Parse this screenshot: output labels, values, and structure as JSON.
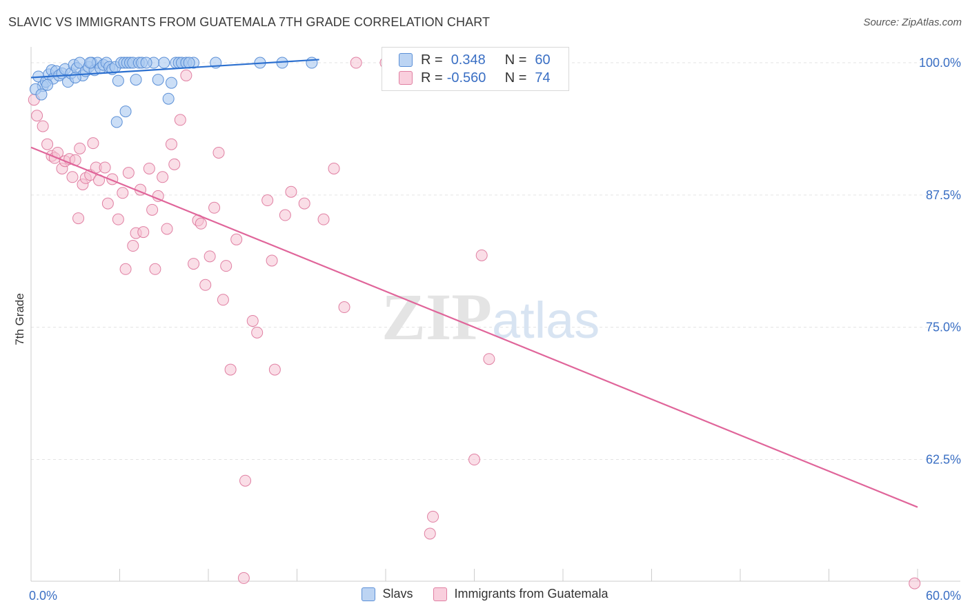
{
  "title": "SLAVIC VS IMMIGRANTS FROM GUATEMALA 7TH GRADE CORRELATION CHART",
  "source": "Source: ZipAtlas.com",
  "watermark": {
    "zip": "ZIP",
    "atlas": "atlas"
  },
  "legend": {
    "rows": [
      {
        "r_label": "R =",
        "r_value": "0.348",
        "n_label": "N =",
        "n_value": "60"
      },
      {
        "r_label": "R =",
        "r_value": "-0.560",
        "n_label": "N =",
        "n_value": "74"
      }
    ]
  },
  "bottom_legend": {
    "slavs": "Slavs",
    "guatemala": "Immigrants from Guatemala"
  },
  "colors": {
    "slavs_fill": "#a9c8f0",
    "slavs_stroke": "#5b8fd6",
    "slavs_line": "#2b6fcf",
    "guat_fill": "#f6c2d4",
    "guat_stroke": "#e07fa2",
    "guat_line": "#e0659a",
    "axis_label": "#3a6fc4",
    "grid": "#e3e3e3"
  },
  "chart_data": {
    "type": "scatter",
    "title": "SLAVIC VS IMMIGRANTS FROM GUATEMALA 7TH GRADE CORRELATION CHART",
    "xlabel": "",
    "ylabel": "7th Grade",
    "xlim": [
      0,
      60
    ],
    "ylim": [
      51.0,
      101.5
    ],
    "x_tick_labels": [
      {
        "value": 0,
        "label": "0.0%"
      },
      {
        "value": 60,
        "label": "60.0%"
      }
    ],
    "y_tick_labels": [
      {
        "value": 100,
        "label": "100.0%"
      },
      {
        "value": 87.5,
        "label": "87.5%"
      },
      {
        "value": 75,
        "label": "75.0%"
      },
      {
        "value": 62.5,
        "label": "62.5%"
      }
    ],
    "grid": true,
    "legend_position": "top-center",
    "series": [
      {
        "name": "Slavs",
        "R": 0.348,
        "N": 60,
        "trend": {
          "x": [
            0,
            19.5
          ],
          "y": [
            98.6,
            100.3
          ]
        },
        "points": [
          [
            0.5,
            98.7
          ],
          [
            0.8,
            97.8
          ],
          [
            1.0,
            98.2
          ],
          [
            1.2,
            98.9
          ],
          [
            1.4,
            99.3
          ],
          [
            1.5,
            98.5
          ],
          [
            1.7,
            99.2
          ],
          [
            1.9,
            98.8
          ],
          [
            2.1,
            99.0
          ],
          [
            2.3,
            99.4
          ],
          [
            2.5,
            98.2
          ],
          [
            2.7,
            99.0
          ],
          [
            2.9,
            99.8
          ],
          [
            3.1,
            99.5
          ],
          [
            3.3,
            100.0
          ],
          [
            3.5,
            98.8
          ],
          [
            3.7,
            99.2
          ],
          [
            3.9,
            99.6
          ],
          [
            4.1,
            100.0
          ],
          [
            4.3,
            99.3
          ],
          [
            4.5,
            100.0
          ],
          [
            4.7,
            99.5
          ],
          [
            4.9,
            99.8
          ],
          [
            5.1,
            100.0
          ],
          [
            5.3,
            99.6
          ],
          [
            5.5,
            99.4
          ],
          [
            5.7,
            99.6
          ],
          [
            5.9,
            98.3
          ],
          [
            6.1,
            100.0
          ],
          [
            6.3,
            100.0
          ],
          [
            6.5,
            100.0
          ],
          [
            6.7,
            100.0
          ],
          [
            6.9,
            100.0
          ],
          [
            7.1,
            98.4
          ],
          [
            7.3,
            100.0
          ],
          [
            7.5,
            100.0
          ],
          [
            8.3,
            100.0
          ],
          [
            8.6,
            98.4
          ],
          [
            9.0,
            100.0
          ],
          [
            9.5,
            98.1
          ],
          [
            9.8,
            100.0
          ],
          [
            10.0,
            100.0
          ],
          [
            10.2,
            100.0
          ],
          [
            10.5,
            100.0
          ],
          [
            11.0,
            100.0
          ],
          [
            12.5,
            100.0
          ],
          [
            15.5,
            100.0
          ],
          [
            17.0,
            100.0
          ],
          [
            19.0,
            100.0
          ],
          [
            25.0,
            100.0
          ],
          [
            0.3,
            97.5
          ],
          [
            0.7,
            97.0
          ],
          [
            1.1,
            97.9
          ],
          [
            3.0,
            98.6
          ],
          [
            5.8,
            94.4
          ],
          [
            6.4,
            95.4
          ],
          [
            9.3,
            96.6
          ],
          [
            4.0,
            100.0
          ],
          [
            7.8,
            100.0
          ],
          [
            10.7,
            100.0
          ]
        ],
        "point_sizes": [
          [
            0.3,
            97.5,
            12
          ],
          [
            0.7,
            97.0,
            10
          ]
        ]
      },
      {
        "name": "Immigrants from Guatemala",
        "R": -0.56,
        "N": 74,
        "trend": {
          "x": [
            0,
            60
          ],
          "y": [
            92.0,
            58.0
          ]
        },
        "points": [
          [
            0.2,
            96.5
          ],
          [
            0.4,
            95.0
          ],
          [
            0.8,
            94.0
          ],
          [
            1.1,
            92.3
          ],
          [
            1.4,
            91.2
          ],
          [
            1.6,
            91.0
          ],
          [
            1.8,
            91.5
          ],
          [
            2.1,
            90.0
          ],
          [
            2.3,
            90.7
          ],
          [
            2.6,
            90.9
          ],
          [
            2.8,
            89.2
          ],
          [
            3.0,
            90.8
          ],
          [
            3.3,
            91.9
          ],
          [
            3.5,
            88.5
          ],
          [
            3.7,
            89.1
          ],
          [
            4.0,
            89.4
          ],
          [
            4.2,
            92.4
          ],
          [
            4.4,
            90.1
          ],
          [
            4.6,
            88.9
          ],
          [
            5.0,
            90.1
          ],
          [
            5.2,
            86.7
          ],
          [
            5.5,
            89.0
          ],
          [
            5.9,
            85.2
          ],
          [
            6.2,
            87.7
          ],
          [
            6.4,
            80.5
          ],
          [
            6.6,
            89.6
          ],
          [
            6.9,
            82.7
          ],
          [
            7.1,
            83.9
          ],
          [
            7.4,
            88.0
          ],
          [
            7.6,
            84.0
          ],
          [
            8.0,
            90.0
          ],
          [
            8.2,
            86.1
          ],
          [
            8.4,
            80.5
          ],
          [
            8.6,
            87.4
          ],
          [
            8.9,
            89.2
          ],
          [
            9.2,
            84.3
          ],
          [
            9.5,
            92.3
          ],
          [
            9.7,
            90.4
          ],
          [
            10.1,
            94.6
          ],
          [
            10.5,
            98.8
          ],
          [
            11.0,
            81.0
          ],
          [
            11.3,
            85.1
          ],
          [
            11.5,
            84.8
          ],
          [
            11.8,
            79.0
          ],
          [
            12.1,
            81.7
          ],
          [
            12.4,
            86.3
          ],
          [
            12.7,
            91.5
          ],
          [
            13.0,
            77.6
          ],
          [
            13.2,
            80.8
          ],
          [
            13.5,
            71.0
          ],
          [
            13.9,
            83.3
          ],
          [
            14.5,
            60.5
          ],
          [
            15.0,
            75.6
          ],
          [
            15.3,
            74.5
          ],
          [
            16.0,
            87.0
          ],
          [
            16.3,
            81.3
          ],
          [
            16.5,
            71.0
          ],
          [
            17.2,
            85.6
          ],
          [
            17.6,
            87.8
          ],
          [
            18.5,
            86.7
          ],
          [
            19.8,
            85.2
          ],
          [
            20.5,
            90.0
          ],
          [
            21.2,
            76.9
          ],
          [
            22.0,
            100.0
          ],
          [
            24.0,
            100.0
          ],
          [
            30.0,
            62.5
          ],
          [
            30.5,
            81.8
          ],
          [
            27.2,
            57.1
          ],
          [
            27.0,
            55.5
          ],
          [
            14.4,
            51.3
          ],
          [
            31.0,
            72.0
          ],
          [
            35.0,
            100.0
          ],
          [
            59.8,
            50.8
          ],
          [
            3.2,
            85.3
          ]
        ]
      }
    ]
  }
}
